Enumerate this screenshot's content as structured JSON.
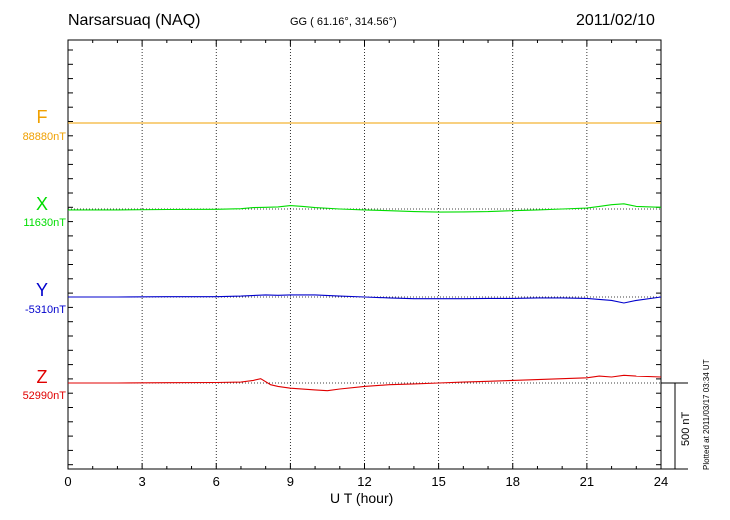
{
  "header": {
    "station": "Narsarsuaq (NAQ)",
    "coords": "GG ( 61.16°, 314.56°)",
    "date": "2011/02/10"
  },
  "plotted_note": "Plotted at 2011/03/17 03:34 UT",
  "colors": {
    "F": "#f0a000",
    "X": "#00dd00",
    "Y": "#0000cc",
    "Z": "#e00000",
    "axis": "#000000",
    "grid": "#000000"
  },
  "chart_data": {
    "type": "line",
    "title": "Narsarsuaq (NAQ)",
    "xlabel": "U T (hour)",
    "ylabel": "",
    "xlim": [
      0,
      24
    ],
    "x_ticks": [
      "0",
      "3",
      "6",
      "9",
      "12",
      "15",
      "18",
      "21",
      "24"
    ],
    "grid": "vertical dotted lines every 3 hours",
    "scale_bar": {
      "label": "500 nT",
      "value_nT": 500
    },
    "components": [
      {
        "name": "F",
        "label": "F",
        "baseline": "88880nT",
        "x": [
          0,
          24
        ],
        "deviation_nT": [
          0,
          0
        ]
      },
      {
        "name": "X",
        "label": "X",
        "baseline": "11630nT",
        "x": [
          0,
          2,
          4,
          6,
          7,
          7.5,
          8,
          8.5,
          9,
          9.5,
          10,
          11,
          12,
          13,
          14,
          15,
          16,
          17,
          18,
          19,
          20,
          21,
          21.5,
          22,
          22.5,
          23,
          24
        ],
        "deviation_nT": [
          -5,
          -5,
          -3,
          -2,
          2,
          8,
          10,
          12,
          20,
          15,
          8,
          0,
          -5,
          -10,
          -15,
          -18,
          -17,
          -15,
          -10,
          -5,
          0,
          5,
          15,
          25,
          30,
          15,
          10
        ]
      },
      {
        "name": "Y",
        "label": "Y",
        "baseline": "-5310nT",
        "x": [
          0,
          2,
          4,
          6,
          7,
          8,
          8.5,
          9,
          10,
          11,
          12,
          13,
          14,
          15,
          16,
          17,
          18,
          19,
          20,
          21,
          22,
          22.5,
          23,
          24
        ],
        "deviation_nT": [
          0,
          0,
          2,
          2,
          5,
          12,
          10,
          12,
          12,
          5,
          0,
          -5,
          -10,
          -10,
          -10,
          -8,
          -8,
          -5,
          -5,
          -8,
          -20,
          -35,
          -20,
          0
        ]
      },
      {
        "name": "Z",
        "label": "Z",
        "baseline": "52990nT",
        "x": [
          0,
          2,
          4,
          6,
          7,
          7.5,
          7.8,
          8.2,
          8.5,
          9,
          10,
          10.5,
          11,
          12,
          13,
          14,
          15,
          16,
          17,
          18,
          19,
          20,
          21,
          21.5,
          22,
          22.5,
          23,
          24
        ],
        "deviation_nT": [
          0,
          0,
          2,
          3,
          5,
          15,
          25,
          -10,
          -20,
          -30,
          -40,
          -45,
          -35,
          -20,
          -10,
          -5,
          0,
          5,
          10,
          15,
          20,
          25,
          30,
          40,
          35,
          45,
          40,
          35
        ]
      }
    ]
  }
}
